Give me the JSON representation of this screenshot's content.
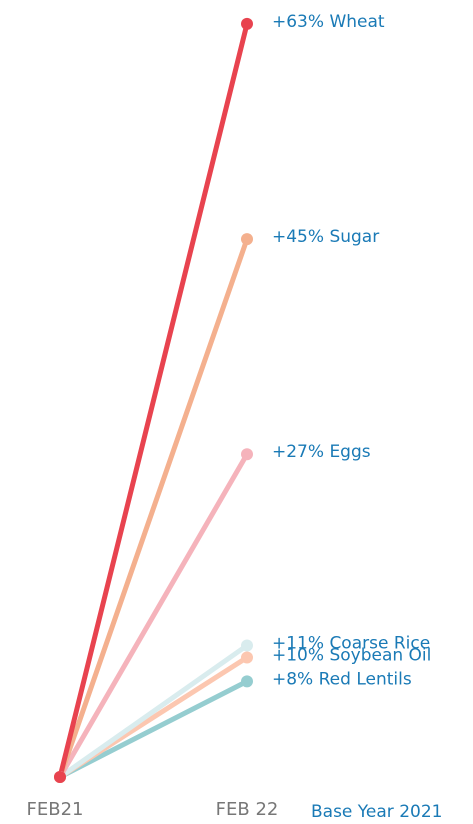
{
  "chart_data": {
    "type": "slope",
    "categories": [
      "FEB21",
      "FEB 22"
    ],
    "annotation": "Base Year 2021",
    "ylim": [
      0,
      65
    ],
    "series": [
      {
        "name": "Red Lentils",
        "color": "#95cdd0",
        "values": [
          0,
          8
        ],
        "value_labels": [
          null,
          "+8%"
        ]
      },
      {
        "name": "Soybean Oil",
        "color": "#fcc7b0",
        "values": [
          0,
          10
        ],
        "value_labels": [
          null,
          "+10%"
        ]
      },
      {
        "name": "Coarse Rice",
        "color": "#d9ecee",
        "values": [
          0,
          11
        ],
        "value_labels": [
          null,
          "+11%"
        ]
      },
      {
        "name": "Eggs",
        "color": "#f5b3bb",
        "values": [
          0,
          27
        ],
        "value_labels": [
          null,
          "+27%"
        ]
      },
      {
        "name": "Sugar",
        "color": "#f4b08e",
        "values": [
          0,
          45
        ],
        "value_labels": [
          null,
          "+45%"
        ]
      },
      {
        "name": "Wheat",
        "color": "#e8434f",
        "values": [
          0,
          63
        ],
        "value_labels": [
          null,
          "+63%"
        ]
      }
    ]
  }
}
